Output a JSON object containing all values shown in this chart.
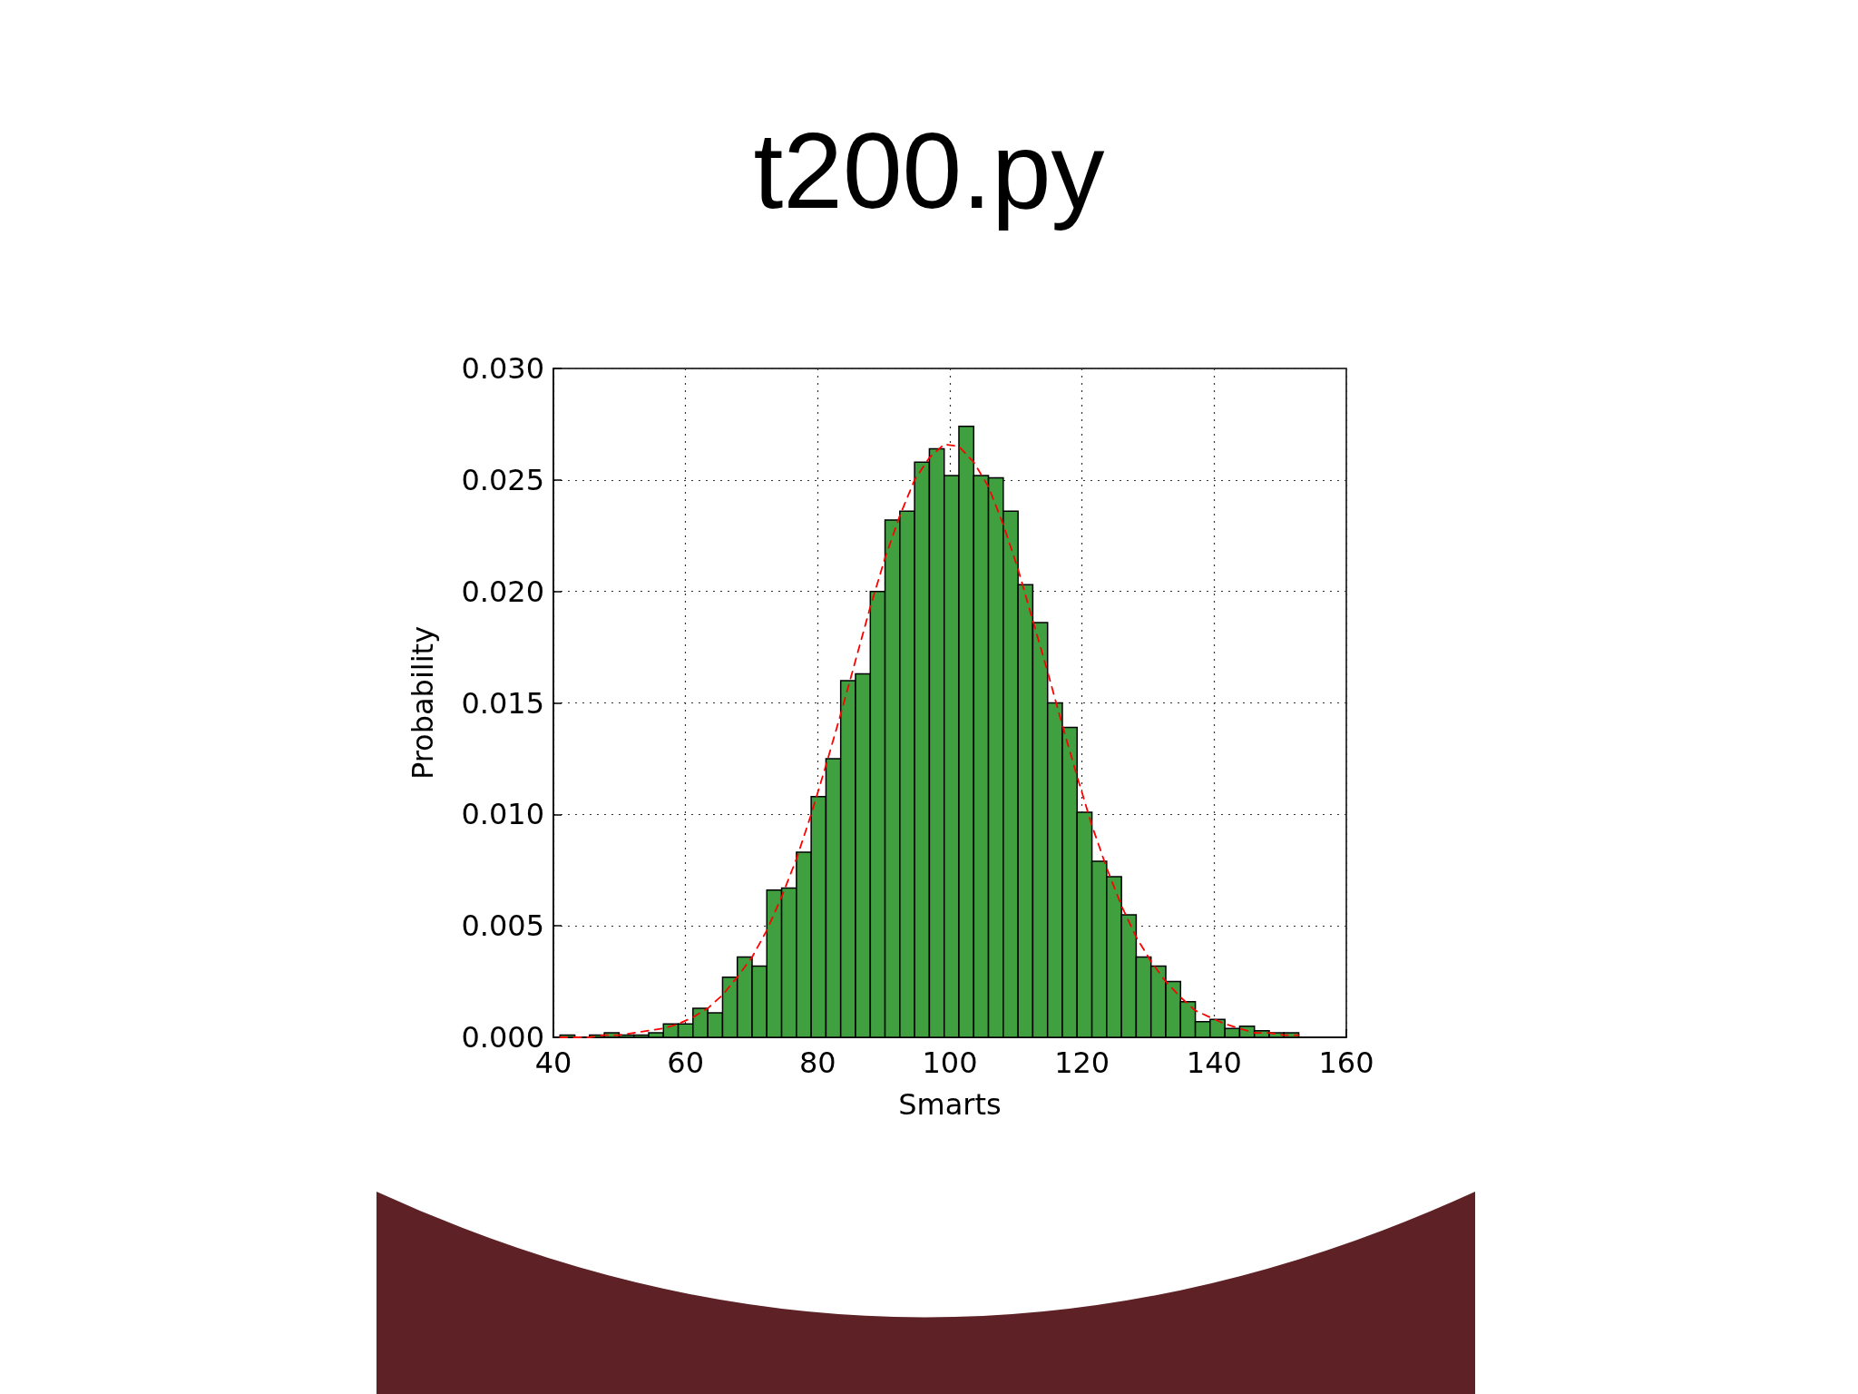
{
  "chart_data": {
    "type": "histogram",
    "title": "t200.py",
    "xlabel": "Smarts",
    "ylabel": "Probability",
    "series": [
      {
        "type": "histogram",
        "color": "#40a040",
        "bins": [
          41.0,
          43.24,
          45.47,
          47.71,
          49.94,
          52.18,
          54.42,
          56.65,
          58.89,
          61.12,
          63.36,
          65.6,
          67.83,
          70.07,
          72.3,
          74.54,
          76.78,
          79.01,
          81.25,
          83.48,
          85.72,
          87.96,
          90.19,
          92.43,
          94.66,
          96.9,
          99.14,
          101.37,
          103.61,
          105.84,
          108.08,
          110.32,
          112.55,
          114.79,
          117.02,
          119.26,
          121.5,
          123.73,
          125.97,
          128.2,
          130.44,
          132.68,
          134.91,
          137.15,
          139.38,
          141.62,
          143.86,
          146.09,
          148.33,
          150.56,
          152.8
        ],
        "values": [
          0.0001,
          0,
          0.0001,
          0.0002,
          0.0001,
          0.0001,
          0.0002,
          0.0006,
          0.0006,
          0.0013,
          0.0011,
          0.0027,
          0.0036,
          0.0032,
          0.0066,
          0.0067,
          0.0083,
          0.0108,
          0.0125,
          0.016,
          0.0163,
          0.02,
          0.0232,
          0.0236,
          0.0258,
          0.0264,
          0.0252,
          0.0274,
          0.0252,
          0.0251,
          0.0236,
          0.0203,
          0.0186,
          0.015,
          0.0139,
          0.0101,
          0.0079,
          0.0072,
          0.0055,
          0.0036,
          0.0032,
          0.0025,
          0.0016,
          0.0007,
          0.0008,
          0.0004,
          0.0005,
          0.0003,
          0.0002,
          0.0002
        ]
      },
      {
        "type": "line",
        "color": "#ff0000",
        "line_style": "dashed",
        "marker": "none",
        "x": [
          41.0,
          43.24,
          45.47,
          47.71,
          49.94,
          52.18,
          54.42,
          56.65,
          58.89,
          61.12,
          63.36,
          65.6,
          67.83,
          70.07,
          72.3,
          74.54,
          76.78,
          79.01,
          81.25,
          83.48,
          85.72,
          87.96,
          90.19,
          92.43,
          94.66,
          96.9,
          99.14,
          101.37,
          103.61,
          105.84,
          108.08,
          110.32,
          112.55,
          114.79,
          117.02,
          119.26,
          121.5,
          123.73,
          125.97,
          128.2,
          130.44,
          132.68,
          134.91,
          137.15,
          139.38,
          141.62,
          143.86,
          146.09,
          148.33,
          150.56,
          152.8
        ],
        "values": [
          0,
          0,
          0,
          0.0001,
          0.0001,
          0.0002,
          0.0003,
          0.0004,
          0.0006,
          0.0009,
          0.0013,
          0.0019,
          0.0027,
          0.0036,
          0.0048,
          0.0063,
          0.008,
          0.01,
          0.0122,
          0.0145,
          0.0169,
          0.0193,
          0.0215,
          0.0234,
          0.025,
          0.026,
          0.0266,
          0.0265,
          0.0258,
          0.0247,
          0.023,
          0.021,
          0.0187,
          0.0164,
          0.014,
          0.0117,
          0.0095,
          0.0076,
          0.0059,
          0.0045,
          0.0034,
          0.0025,
          0.0018,
          0.0012,
          0.0009,
          0.0006,
          0.0004,
          0.0002,
          0.0002,
          0.0001,
          0.0001
        ]
      }
    ],
    "xlim": [
      40,
      160
    ],
    "xticks": [
      40,
      60,
      80,
      100,
      120,
      140,
      160
    ],
    "ylim": [
      0,
      0.03
    ],
    "yticks": [
      {
        "value": 0,
        "label": "0.000"
      },
      {
        "value": 0.005,
        "label": "0.005"
      },
      {
        "value": 0.01,
        "label": "0.010"
      },
      {
        "value": 0.015,
        "label": "0.015"
      },
      {
        "value": 0.02,
        "label": "0.020"
      },
      {
        "value": 0.025,
        "label": "0.025"
      },
      {
        "value": 0.03,
        "label": "0.030"
      }
    ],
    "grid": true
  }
}
